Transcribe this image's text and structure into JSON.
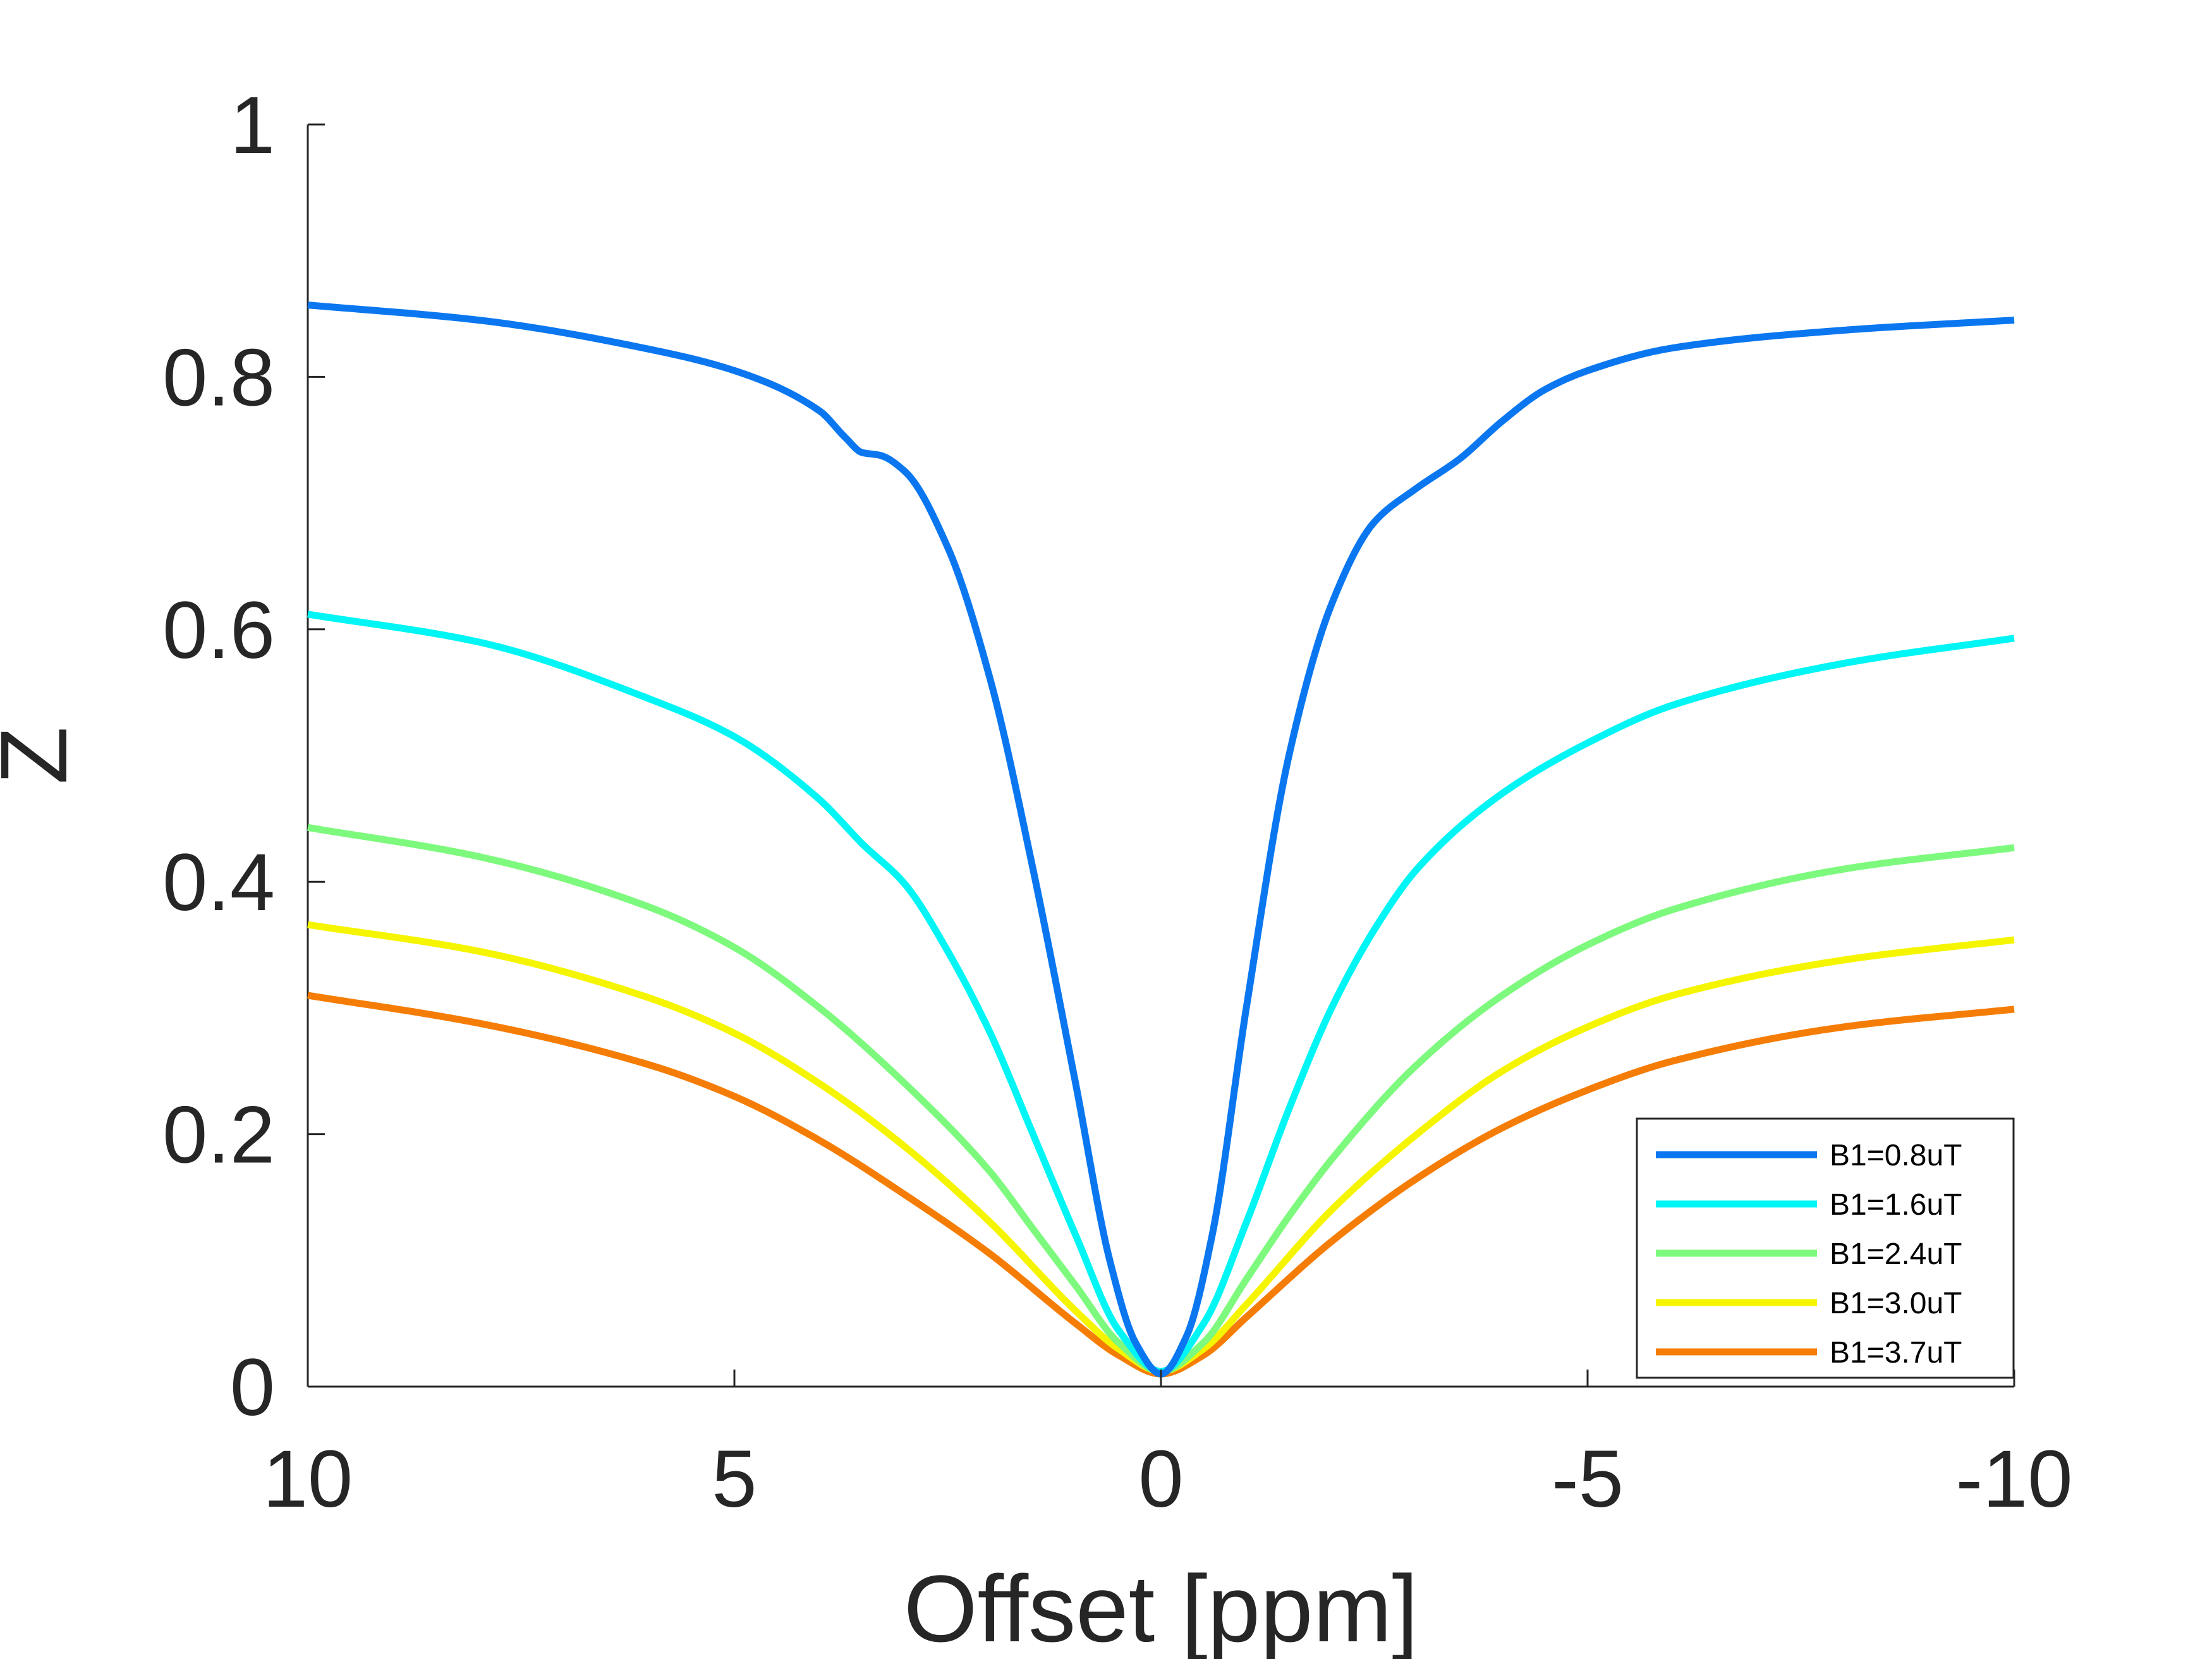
{
  "chart_data": {
    "type": "line",
    "title": "",
    "xlabel": "Offset [ppm]",
    "ylabel": "Z",
    "xlim": [
      10,
      -10
    ],
    "ylim": [
      0,
      1
    ],
    "x_reversed": true,
    "xticks": [
      10,
      5,
      0,
      -5,
      -10
    ],
    "xtick_labels": [
      "10",
      "5",
      "0",
      "-5",
      "-10"
    ],
    "yticks": [
      0,
      0.2,
      0.4,
      0.6,
      0.8,
      1
    ],
    "ytick_labels": [
      "0",
      "0.2",
      "0.4",
      "0.6",
      "0.8",
      "1"
    ],
    "grid": false,
    "legend_position": "bottom-right",
    "series": [
      {
        "name": "B1=0.8uT",
        "color": "#0a77f0",
        "points": [
          [
            10,
            0.857
          ],
          [
            8,
            0.845
          ],
          [
            6,
            0.822
          ],
          [
            5,
            0.805
          ],
          [
            4,
            0.773
          ],
          [
            3.7,
            0.752
          ],
          [
            3.5,
            0.74
          ],
          [
            3.3,
            0.738
          ],
          [
            3,
            0.725
          ],
          [
            2.5,
            0.665
          ],
          [
            2,
            0.56
          ],
          [
            1.5,
            0.41
          ],
          [
            1,
            0.24
          ],
          [
            0.6,
            0.1
          ],
          [
            0.3,
            0.035
          ],
          [
            0,
            0.01
          ],
          [
            -0.3,
            0.04
          ],
          [
            -0.6,
            0.12
          ],
          [
            -1,
            0.3
          ],
          [
            -1.5,
            0.5
          ],
          [
            -2,
            0.62
          ],
          [
            -2.5,
            0.685
          ],
          [
            -3,
            0.712
          ],
          [
            -3.5,
            0.735
          ],
          [
            -4,
            0.765
          ],
          [
            -4.5,
            0.79
          ],
          [
            -5,
            0.805
          ],
          [
            -6,
            0.823
          ],
          [
            -8,
            0.837
          ],
          [
            -10,
            0.845
          ]
        ]
      },
      {
        "name": "B1=1.6uT",
        "color": "#00f5f5",
        "points": [
          [
            10,
            0.612
          ],
          [
            8,
            0.59
          ],
          [
            6,
            0.545
          ],
          [
            5,
            0.515
          ],
          [
            4,
            0.465
          ],
          [
            3.5,
            0.43
          ],
          [
            3,
            0.398
          ],
          [
            2.5,
            0.345
          ],
          [
            2,
            0.28
          ],
          [
            1.5,
            0.2
          ],
          [
            1,
            0.12
          ],
          [
            0.5,
            0.045
          ],
          [
            0,
            0.012
          ],
          [
            -0.5,
            0.05
          ],
          [
            -1,
            0.13
          ],
          [
            -1.5,
            0.22
          ],
          [
            -2,
            0.3
          ],
          [
            -2.5,
            0.362
          ],
          [
            -3,
            0.41
          ],
          [
            -4,
            0.47
          ],
          [
            -5,
            0.51
          ],
          [
            -6,
            0.54
          ],
          [
            -8,
            0.573
          ],
          [
            -10,
            0.593
          ]
        ]
      },
      {
        "name": "B1=2.4uT",
        "color": "#7dfa7d",
        "points": [
          [
            10,
            0.443
          ],
          [
            8,
            0.42
          ],
          [
            6,
            0.38
          ],
          [
            5,
            0.348
          ],
          [
            4,
            0.3
          ],
          [
            3,
            0.24
          ],
          [
            2,
            0.17
          ],
          [
            1.5,
            0.125
          ],
          [
            1,
            0.08
          ],
          [
            0.5,
            0.035
          ],
          [
            0,
            0.012
          ],
          [
            -0.5,
            0.035
          ],
          [
            -1,
            0.085
          ],
          [
            -1.5,
            0.135
          ],
          [
            -2,
            0.18
          ],
          [
            -3,
            0.255
          ],
          [
            -4,
            0.31
          ],
          [
            -5,
            0.35
          ],
          [
            -6,
            0.378
          ],
          [
            -8,
            0.41
          ],
          [
            -10,
            0.427
          ]
        ]
      },
      {
        "name": "B1=3.0uT",
        "color": "#f5f500",
        "points": [
          [
            10,
            0.366
          ],
          [
            8,
            0.345
          ],
          [
            6,
            0.308
          ],
          [
            5,
            0.28
          ],
          [
            4,
            0.24
          ],
          [
            3,
            0.19
          ],
          [
            2,
            0.13
          ],
          [
            1,
            0.06
          ],
          [
            0.5,
            0.03
          ],
          [
            0,
            0.012
          ],
          [
            -0.5,
            0.03
          ],
          [
            -1,
            0.065
          ],
          [
            -2,
            0.14
          ],
          [
            -3,
            0.2
          ],
          [
            -4,
            0.25
          ],
          [
            -5,
            0.285
          ],
          [
            -6,
            0.31
          ],
          [
            -8,
            0.338
          ],
          [
            -10,
            0.354
          ]
        ]
      },
      {
        "name": "B1=3.7uT",
        "color": "#f57d05",
        "points": [
          [
            10,
            0.31
          ],
          [
            8,
            0.288
          ],
          [
            6,
            0.255
          ],
          [
            5,
            0.23
          ],
          [
            4,
            0.195
          ],
          [
            3,
            0.152
          ],
          [
            2,
            0.105
          ],
          [
            1,
            0.05
          ],
          [
            0.5,
            0.025
          ],
          [
            0,
            0.01
          ],
          [
            -0.5,
            0.025
          ],
          [
            -1,
            0.055
          ],
          [
            -2,
            0.115
          ],
          [
            -3,
            0.165
          ],
          [
            -4,
            0.205
          ],
          [
            -5,
            0.235
          ],
          [
            -6,
            0.258
          ],
          [
            -8,
            0.285
          ],
          [
            -10,
            0.299
          ]
        ]
      }
    ]
  }
}
